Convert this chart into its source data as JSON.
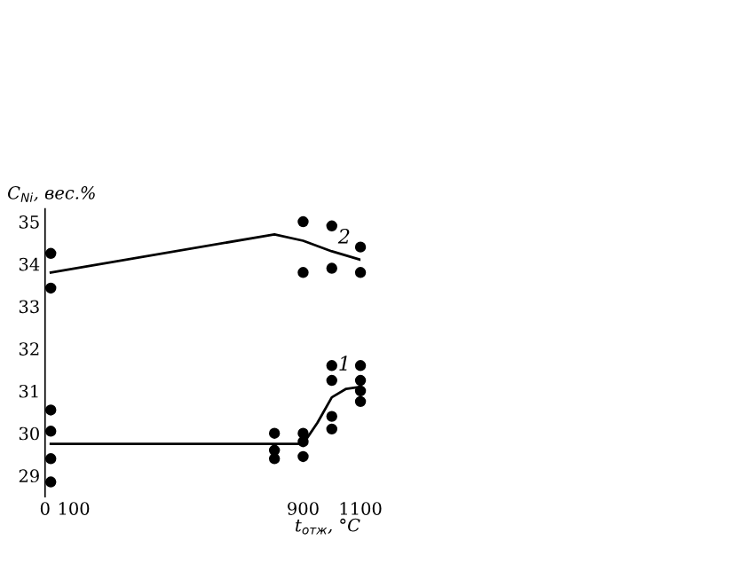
{
  "chart_data": {
    "type": "scatter",
    "xlabel": "t$_{отж}$, °C",
    "ylabel": "C$_{Ni}$, вес.%",
    "xlim": [
      0,
      1100
    ],
    "xticks": [
      0,
      100,
      900,
      1100
    ],
    "ylim": [
      28.5,
      35.3
    ],
    "yticks": [
      29,
      30,
      31,
      32,
      33,
      34,
      35
    ],
    "grid": false,
    "legend": false,
    "series": [
      {
        "type": "scatter",
        "marker": "circle",
        "color": "#000000",
        "x": [
          20,
          20,
          900,
          900,
          1000,
          1000,
          1100,
          1100
        ],
        "values": [
          34.25,
          33.43,
          35.0,
          33.8,
          34.9,
          33.9,
          34.4,
          33.8
        ]
      },
      {
        "type": "line",
        "marker": "none",
        "name": "2",
        "color": "#000000",
        "line_style": "solid",
        "x": [
          20,
          800,
          900,
          1000,
          1100
        ],
        "values": [
          33.8,
          34.7,
          34.55,
          34.3,
          34.1
        ]
      },
      {
        "type": "scatter",
        "marker": "circle",
        "color": "#000000",
        "x": [
          20,
          20,
          20,
          20,
          800,
          800,
          800,
          900,
          900,
          900,
          1000,
          1000,
          1000,
          1000,
          1100,
          1100,
          1100,
          1100
        ],
        "values": [
          30.55,
          30.05,
          29.4,
          28.85,
          30.0,
          29.6,
          29.4,
          30.0,
          29.8,
          29.45,
          31.6,
          31.25,
          30.4,
          30.1,
          31.6,
          31.25,
          31.0,
          30.75
        ]
      },
      {
        "type": "line",
        "marker": "none",
        "name": "1",
        "color": "#000000",
        "line_style": "solid",
        "x": [
          20,
          800,
          900,
          950,
          1000,
          1050,
          1100
        ],
        "values": [
          29.75,
          29.75,
          29.75,
          30.25,
          30.85,
          31.05,
          31.1
        ]
      }
    ]
  }
}
